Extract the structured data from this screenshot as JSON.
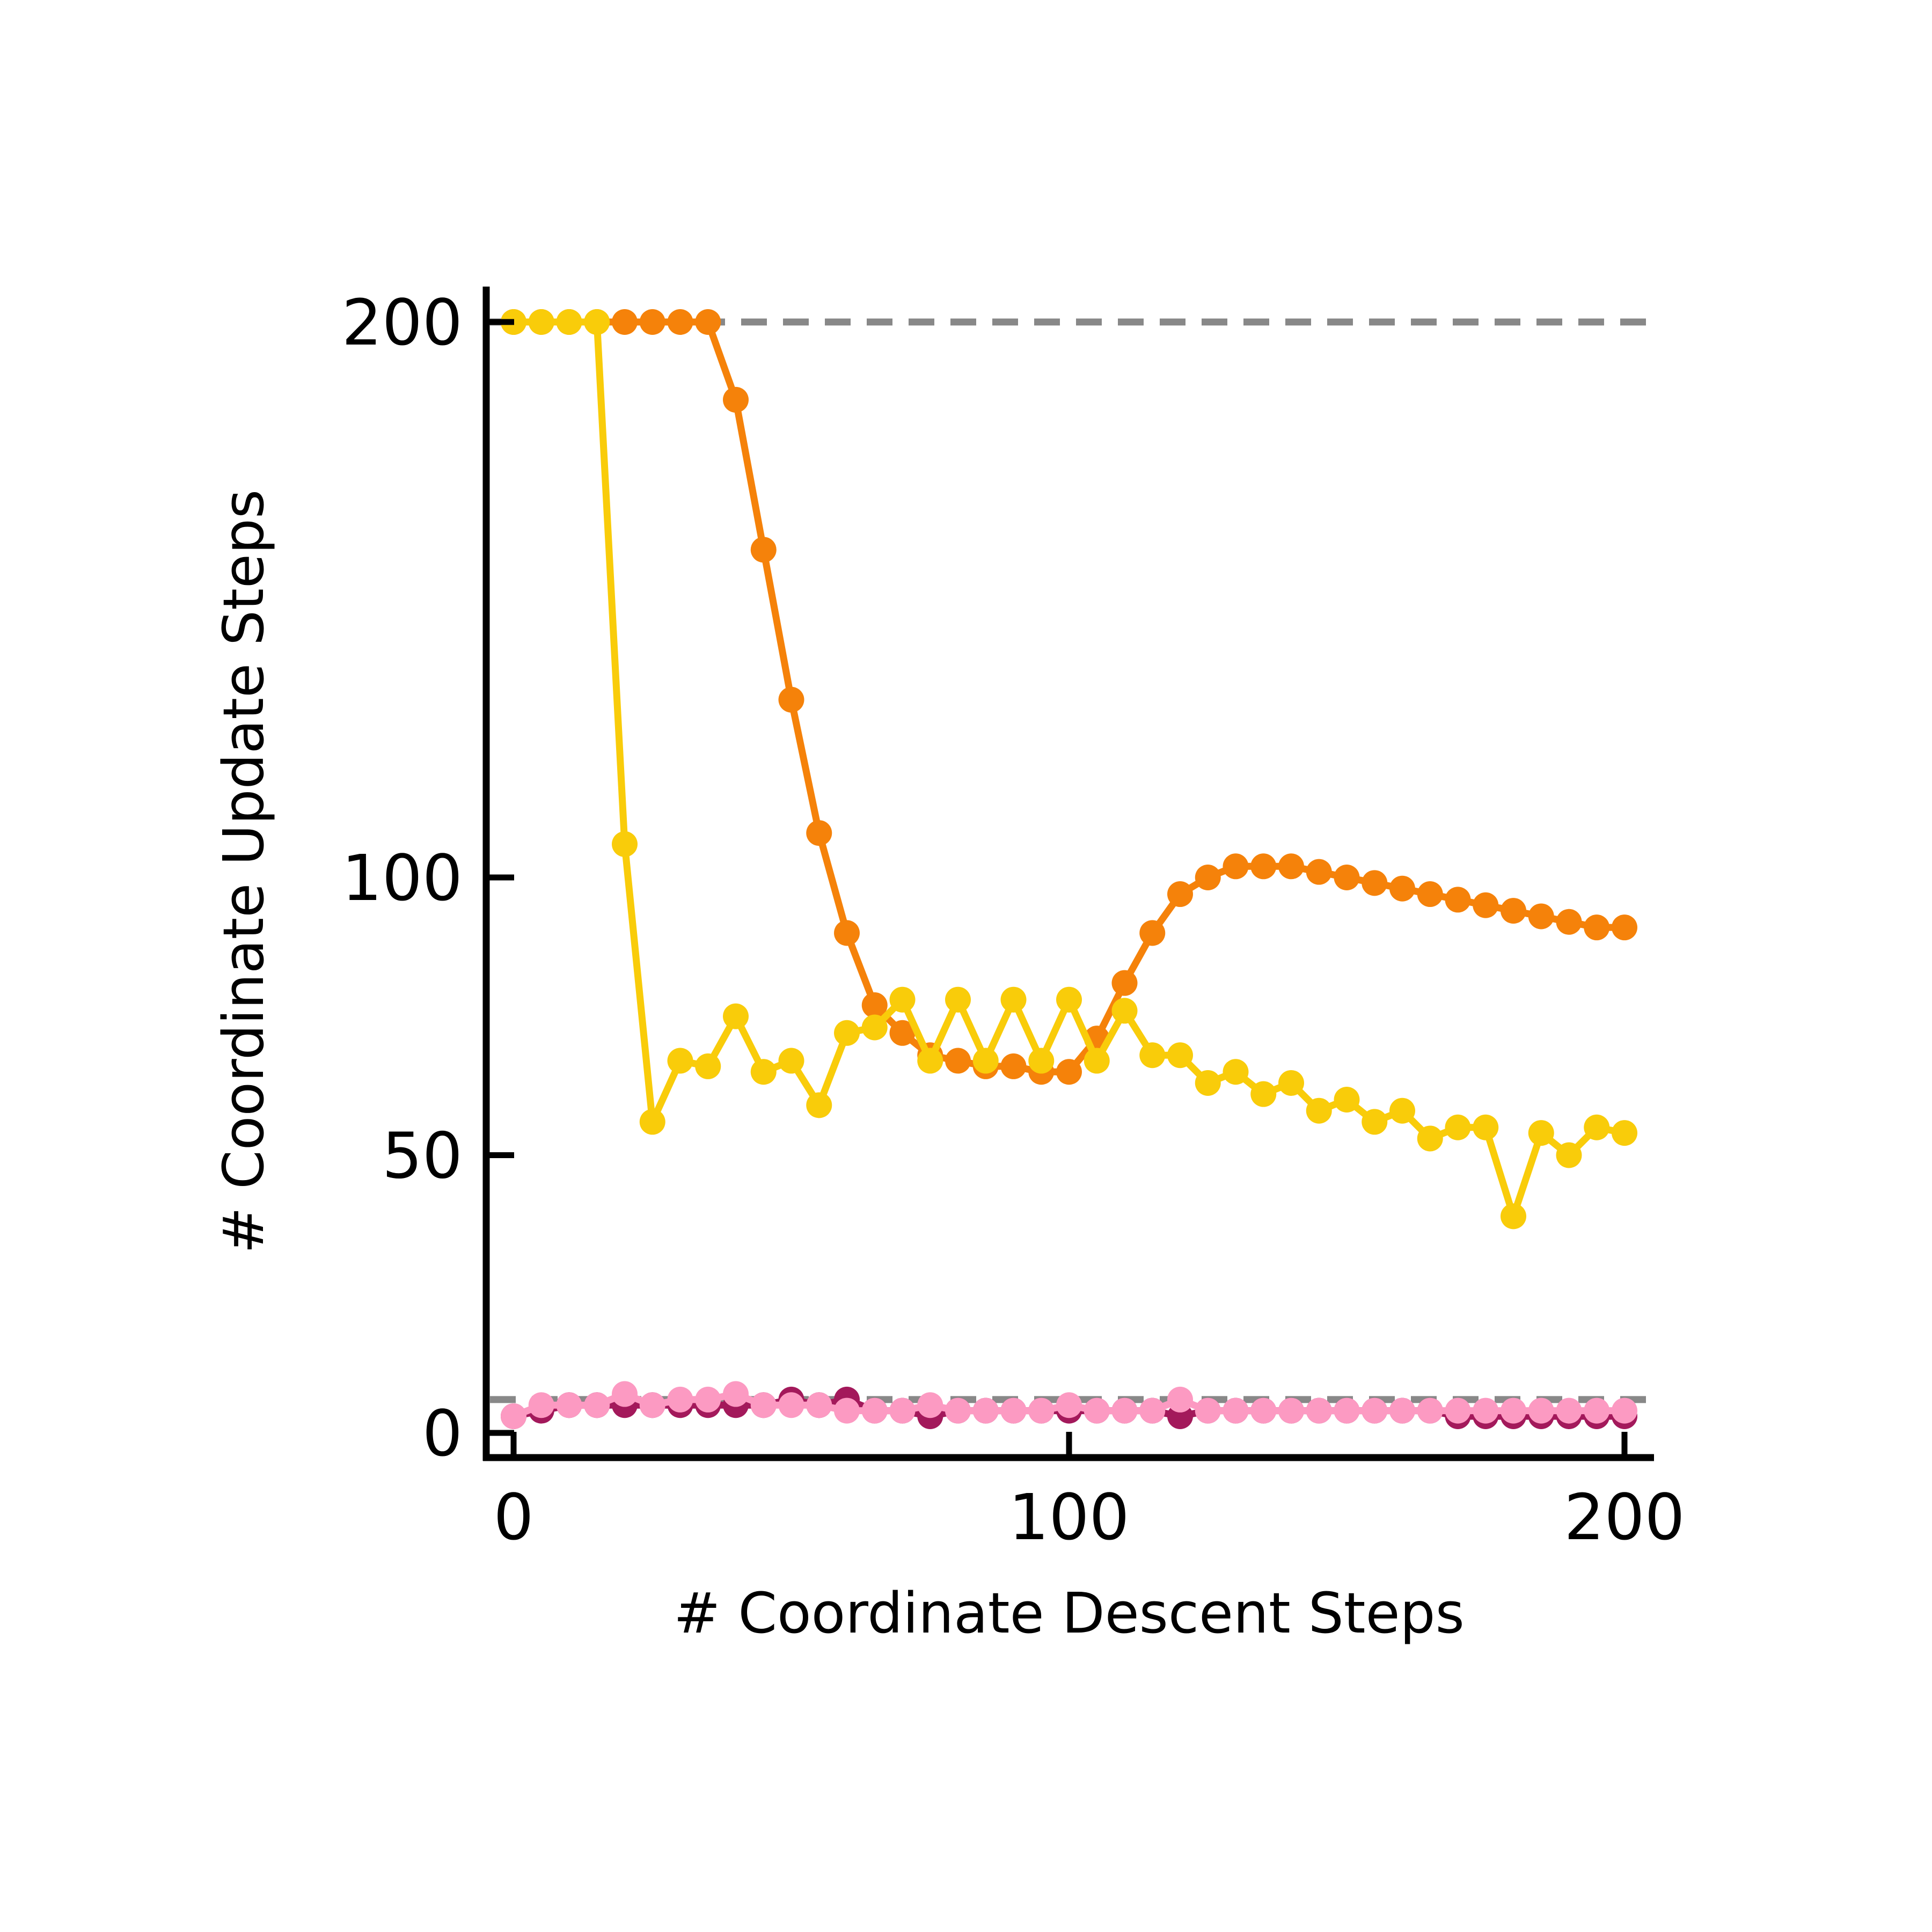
{
  "chart_data": {
    "type": "line",
    "xlabel": "# Coordinate Descent Steps",
    "ylabel": "# Coordinate Update Steps",
    "xlim": [
      -5,
      205
    ],
    "ylim": [
      -5,
      210
    ],
    "x_ticks": [
      0,
      100,
      200
    ],
    "y_ticks": [
      0,
      50,
      100,
      200
    ],
    "grid": false,
    "reference_lines": [
      {
        "y": 200,
        "style": "dashed",
        "color": "#888888"
      },
      {
        "y": 6,
        "style": "dashed",
        "color": "#888888"
      }
    ],
    "x": [
      0,
      5,
      10,
      15,
      20,
      25,
      30,
      35,
      40,
      45,
      50,
      55,
      60,
      65,
      70,
      75,
      80,
      85,
      90,
      95,
      100,
      105,
      110,
      115,
      120,
      125,
      130,
      135,
      140,
      145,
      150,
      155,
      160,
      165,
      170,
      175,
      180,
      185,
      190,
      195,
      200
    ],
    "series": [
      {
        "color": "#f5820a",
        "values": [
          200,
          200,
          200,
          200,
          200,
          200,
          200,
          200,
          186,
          159,
          132,
          108,
          90,
          77,
          72,
          68,
          67,
          66,
          66,
          65,
          65,
          71,
          81,
          90,
          97,
          100,
          102,
          102,
          102,
          101,
          100,
          99,
          98,
          97,
          96,
          95,
          94,
          93,
          92,
          91,
          91
        ]
      },
      {
        "color": "#f9cc0a",
        "values": [
          200,
          200,
          200,
          200,
          106,
          56,
          67,
          66,
          75,
          65,
          67,
          59,
          72,
          73,
          78,
          67,
          78,
          67,
          78,
          67,
          78,
          67,
          76,
          68,
          68,
          63,
          65,
          61,
          63,
          58,
          60,
          56,
          58,
          53,
          55,
          55,
          39,
          54,
          50,
          55,
          54
        ]
      },
      {
        "color": "#a3195b",
        "values": [
          3,
          4,
          5,
          5,
          5,
          5,
          5,
          5,
          5,
          5,
          6,
          5,
          6,
          4,
          4,
          3,
          4,
          4,
          4,
          4,
          4,
          4,
          4,
          4,
          3,
          4,
          4,
          4,
          4,
          4,
          4,
          4,
          4,
          4,
          3,
          3,
          3,
          3,
          3,
          3,
          3
        ]
      },
      {
        "color": "#fc9ac2",
        "values": [
          3,
          5,
          5,
          5,
          7,
          5,
          6,
          6,
          7,
          5,
          5,
          5,
          4,
          4,
          4,
          5,
          4,
          4,
          4,
          4,
          5,
          4,
          4,
          4,
          6,
          4,
          4,
          4,
          4,
          4,
          4,
          4,
          4,
          4,
          4,
          4,
          4,
          4,
          4,
          4,
          4
        ]
      }
    ]
  }
}
